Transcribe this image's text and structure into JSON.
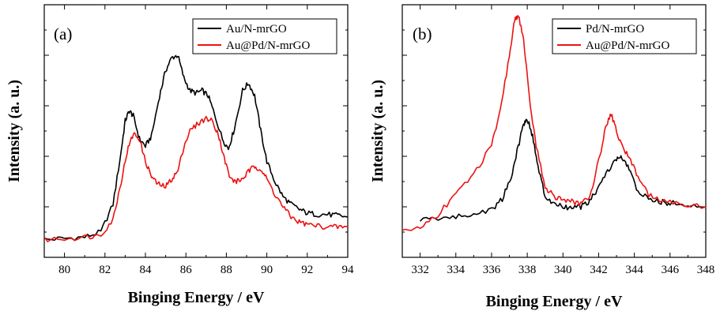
{
  "chart_data": [
    {
      "type": "line",
      "panel_label": "(a)",
      "xlabel": "Binging Energy / eV",
      "ylabel": "Intensity (a. u.)",
      "xlim": [
        79,
        94
      ],
      "ylim": [
        0,
        100
      ],
      "x_ticks": [
        "80",
        "82",
        "84",
        "86",
        "88",
        "90",
        "92",
        "94"
      ],
      "y_ticks_labeled": false,
      "legend_position": "top-right",
      "series": [
        {
          "name": "Au/N-mrGO",
          "color": "#000000",
          "x": [
            79.0,
            80.0,
            81.0,
            81.8,
            82.4,
            82.8,
            83.0,
            83.2,
            83.4,
            83.7,
            84.0,
            84.3,
            84.7,
            85.0,
            85.3,
            85.6,
            85.9,
            86.2,
            86.5,
            86.8,
            87.1,
            87.4,
            87.8,
            88.1,
            88.4,
            88.8,
            89.1,
            89.4,
            89.7,
            90.0,
            90.4,
            90.8,
            91.2,
            91.6,
            92.0,
            92.5,
            93.0,
            93.5,
            94.0
          ],
          "values": [
            7.0,
            7.5,
            8.0,
            10.0,
            21.0,
            42.0,
            54.0,
            58.0,
            56.0,
            47.0,
            44.0,
            48.0,
            64.0,
            74.0,
            79.0,
            80.0,
            71.0,
            66.0,
            65.0,
            66.0,
            64.0,
            57.0,
            47.0,
            43.0,
            51.0,
            66.0,
            69.0,
            64.0,
            50.0,
            38.0,
            30.0,
            24.0,
            21.0,
            19.0,
            17.5,
            17.0,
            17.0,
            16.5,
            16.0
          ]
        },
        {
          "name": "Au@Pd/N-mrGO",
          "color": "#ee1111",
          "x": [
            79.0,
            80.0,
            81.0,
            81.8,
            82.4,
            82.8,
            83.1,
            83.4,
            83.7,
            84.0,
            84.3,
            84.6,
            85.0,
            85.3,
            85.6,
            85.9,
            86.2,
            86.6,
            87.0,
            87.3,
            87.6,
            87.9,
            88.2,
            88.5,
            88.8,
            89.1,
            89.4,
            89.7,
            90.0,
            90.4,
            90.8,
            91.2,
            91.6,
            92.0,
            92.5,
            93.0,
            93.5,
            94.0
          ],
          "values": [
            7.0,
            7.5,
            8.0,
            9.0,
            15.0,
            30.0,
            42.0,
            49.0,
            47.0,
            38.0,
            32.0,
            29.0,
            28.0,
            31.0,
            34.0,
            44.0,
            50.0,
            53.0,
            55.0,
            54.0,
            49.0,
            39.0,
            31.0,
            30.0,
            31.0,
            34.0,
            36.0,
            35.0,
            31.0,
            25.0,
            20.0,
            16.0,
            14.0,
            13.0,
            12.5,
            12.0,
            12.0,
            12.0
          ]
        }
      ]
    },
    {
      "type": "line",
      "panel_label": "(b)",
      "xlabel": "Binging Energy / eV",
      "ylabel": "Intensity (a. u.)",
      "xlim": [
        331,
        348
      ],
      "ylim": [
        0,
        100
      ],
      "x_ticks": [
        "332",
        "334",
        "336",
        "338",
        "340",
        "342",
        "344",
        "346",
        "348"
      ],
      "y_ticks_labeled": false,
      "legend_position": "top-right",
      "series": [
        {
          "name": "Pd/N-mrGO",
          "color": "#000000",
          "x": [
            332.0,
            333.0,
            334.0,
            335.0,
            336.0,
            336.6,
            337.1,
            337.5,
            337.8,
            338.0,
            338.3,
            338.6,
            339.0,
            339.5,
            340.0,
            340.5,
            341.0,
            341.5,
            342.0,
            342.5,
            343.0,
            343.3,
            343.7,
            344.2,
            344.8,
            345.5,
            346.0,
            347.0,
            348.0
          ],
          "values": [
            15.0,
            15.5,
            16.0,
            17.0,
            19.0,
            23.0,
            32.0,
            44.0,
            53.0,
            55.0,
            48.0,
            36.0,
            24.0,
            21.0,
            20.0,
            19.5,
            20.0,
            22.0,
            28.0,
            34.0,
            39.0,
            39.5,
            35.0,
            26.0,
            23.0,
            22.0,
            21.5,
            21.0,
            20.0
          ]
        },
        {
          "name": "Au@Pd/N-mrGO",
          "color": "#ee1111",
          "x": [
            331.0,
            332.0,
            333.0,
            334.0,
            335.0,
            336.0,
            336.5,
            337.0,
            337.3,
            337.5,
            337.8,
            338.1,
            338.5,
            339.0,
            339.5,
            340.0,
            340.5,
            341.0,
            341.5,
            342.0,
            342.4,
            342.7,
            343.0,
            343.3,
            343.7,
            344.2,
            344.8,
            345.5,
            346.5,
            348.0
          ],
          "values": [
            10.0,
            12.0,
            17.0,
            25.0,
            33.0,
            44.0,
            58.0,
            80.0,
            94.0,
            96.0,
            86.0,
            64.0,
            44.0,
            28.0,
            24.0,
            23.0,
            22.0,
            21.0,
            24.0,
            38.0,
            52.0,
            57.0,
            50.0,
            44.0,
            40.0,
            32.0,
            25.0,
            22.0,
            21.0,
            20.0
          ]
        }
      ]
    }
  ]
}
